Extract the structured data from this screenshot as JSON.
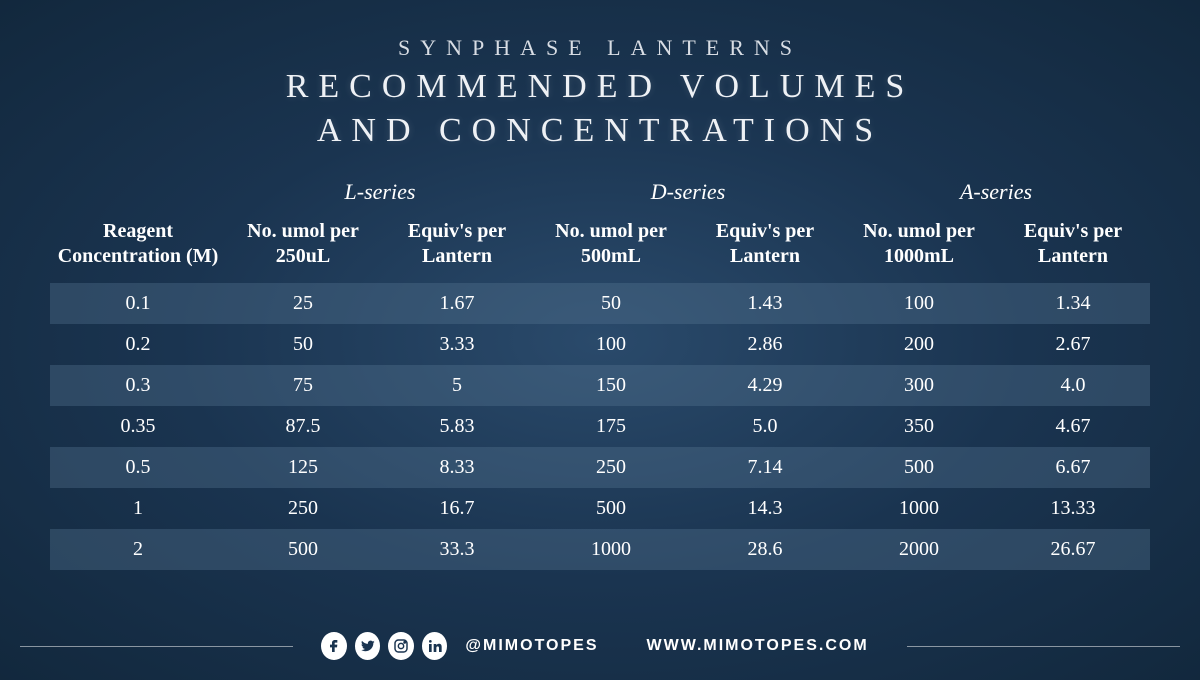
{
  "title": {
    "super": "SYNPHASE LANTERNS",
    "main_line1": "RECOMMENDED VOLUMES",
    "main_line2": "AND CONCENTRATIONS"
  },
  "series": {
    "l": {
      "label": "L-series",
      "umol_header": "No. umol per 250uL",
      "equiv_header": "Equiv's per Lantern"
    },
    "d": {
      "label": "D-series",
      "umol_header": "No. umol per 500mL",
      "equiv_header": "Equiv's per Lantern"
    },
    "a": {
      "label": "A-series",
      "umol_header": "No. umol per 1000mL",
      "equiv_header": "Equiv's per Lantern"
    }
  },
  "reagent_header": "Reagent Concentration (M)",
  "rows": [
    {
      "conc": "0.1",
      "l_umol": "25",
      "l_eq": "1.67",
      "d_umol": "50",
      "d_eq": "1.43",
      "a_umol": "100",
      "a_eq": "1.34"
    },
    {
      "conc": "0.2",
      "l_umol": "50",
      "l_eq": "3.33",
      "d_umol": "100",
      "d_eq": "2.86",
      "a_umol": "200",
      "a_eq": "2.67"
    },
    {
      "conc": "0.3",
      "l_umol": "75",
      "l_eq": "5",
      "d_umol": "150",
      "d_eq": "4.29",
      "a_umol": "300",
      "a_eq": "4.0"
    },
    {
      "conc": "0.35",
      "l_umol": "87.5",
      "l_eq": "5.83",
      "d_umol": "175",
      "d_eq": "5.0",
      "a_umol": "350",
      "a_eq": "4.67"
    },
    {
      "conc": "0.5",
      "l_umol": "125",
      "l_eq": "8.33",
      "d_umol": "250",
      "d_eq": "7.14",
      "a_umol": "500",
      "a_eq": "6.67"
    },
    {
      "conc": "1",
      "l_umol": "250",
      "l_eq": "16.7",
      "d_umol": "500",
      "d_eq": "14.3",
      "a_umol": "1000",
      "a_eq": "13.33"
    },
    {
      "conc": "2",
      "l_umol": "500",
      "l_eq": "33.3",
      "d_umol": "1000",
      "d_eq": "28.6",
      "a_umol": "2000",
      "a_eq": "26.67"
    }
  ],
  "footer": {
    "handle": "@MIMOTOPES",
    "website": "WWW.MIMOTOPES.COM"
  },
  "styling": {
    "type": "table",
    "background_gradient": [
      "#2a4a6b",
      "#1a3450",
      "#12283d"
    ],
    "text_color": "#ffffff",
    "stripe_color": "rgba(90,120,150,0.35)",
    "supertitle_fontsize": 22,
    "maintitle_fontsize": 34,
    "series_header_fontsize": 22,
    "col_header_fontsize": 20,
    "cell_fontsize": 20,
    "letter_spacing_title": 10,
    "font_family": "Georgia, serif",
    "social_icon_bg": "#ffffff",
    "social_icon_fg": "#1a3450",
    "stripe_rows": [
      0,
      2,
      4,
      6
    ],
    "columns": [
      "Reagent Concentration (M)",
      "No. umol per 250uL",
      "Equiv's per Lantern",
      "No. umol per 500mL",
      "Equiv's per Lantern",
      "No. umol per 1000mL",
      "Equiv's per Lantern"
    ]
  }
}
